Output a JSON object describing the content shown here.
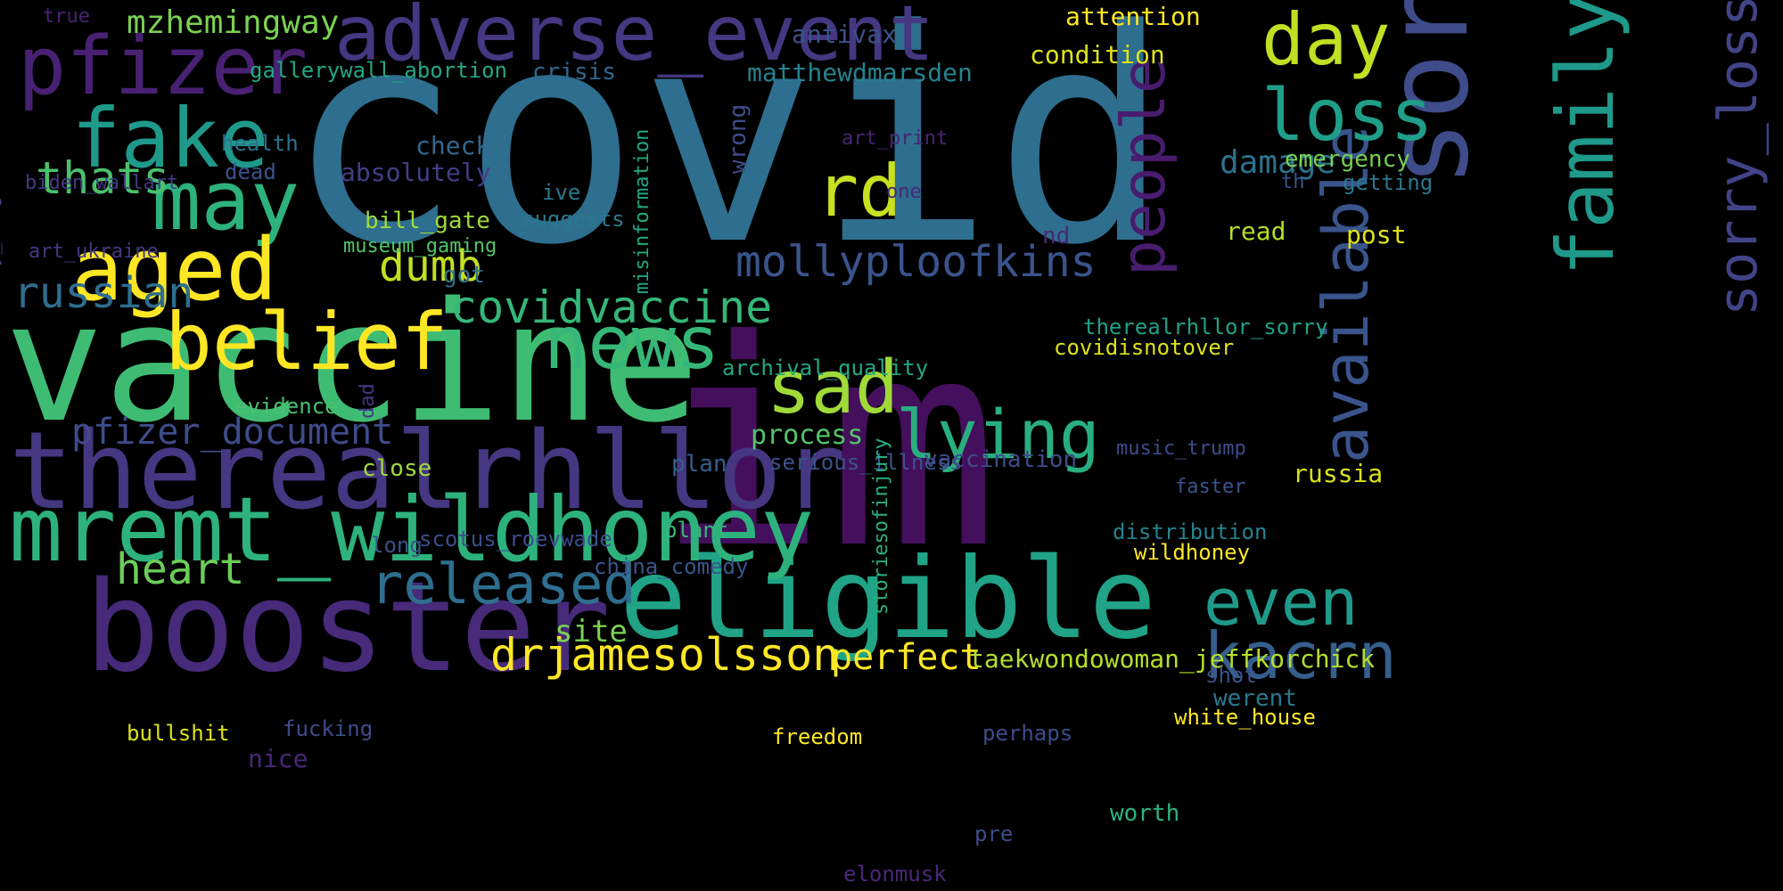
{
  "wordcloud": {
    "background": "#000000",
    "words": [
      {
        "text": "covid",
        "color": "#2e6e8e"
      },
      {
        "text": "im",
        "color": "#440f5c"
      },
      {
        "text": "vaccine",
        "color": "#3fbc73"
      },
      {
        "text": "booster",
        "color": "#472a7a"
      },
      {
        "text": "therealrhllor",
        "color": "#453781"
      },
      {
        "text": "sorry",
        "color": "#3e4c8a"
      },
      {
        "text": "eligible",
        "color": "#20a386"
      },
      {
        "text": "mremt_wildhoney",
        "color": "#2db27d"
      },
      {
        "text": "family",
        "color": "#1f9a8a"
      },
      {
        "text": "adverse_event",
        "color": "#453781"
      },
      {
        "text": "pfizer",
        "color": "#482173"
      },
      {
        "text": "fake",
        "color": "#1f9a8a"
      },
      {
        "text": "may",
        "color": "#2db27d"
      },
      {
        "text": "aged",
        "color": "#fde725"
      },
      {
        "text": "belief",
        "color": "#fde725"
      },
      {
        "text": "news",
        "color": "#35b779"
      },
      {
        "text": "people",
        "color": "#481c6e"
      },
      {
        "text": "sad",
        "color": "#a0da39"
      },
      {
        "text": "lying",
        "color": "#29af7f"
      },
      {
        "text": "available",
        "color": "#3a548c"
      },
      {
        "text": "sorry_loss",
        "color": "#414487"
      },
      {
        "text": "day",
        "color": "#c2df23"
      },
      {
        "text": "loss",
        "color": "#1f9e89"
      },
      {
        "text": "released",
        "color": "#2e6e8e"
      },
      {
        "text": "even",
        "color": "#1f9a8a"
      },
      {
        "text": "kacrn",
        "color": "#355f8d"
      },
      {
        "text": "drjamesolsson",
        "color": "#fde725"
      },
      {
        "text": "rd",
        "color": "#c8e020"
      },
      {
        "text": "mollyploofkins",
        "color": "#3a548c"
      },
      {
        "text": "covidvaccine",
        "color": "#35b779"
      },
      {
        "text": "thats",
        "color": "#4ac16d"
      },
      {
        "text": "russian",
        "color": "#2e6e8e"
      },
      {
        "text": "dumb",
        "color": "#c2df23"
      },
      {
        "text": "pfizer_document",
        "color": "#3e4c8a"
      },
      {
        "text": "heart",
        "color": "#6ccd5a"
      },
      {
        "text": "mzhemingway",
        "color": "#7ad151"
      },
      {
        "text": "perfect",
        "color": "#fde725"
      },
      {
        "text": "site",
        "color": "#7ad151"
      },
      {
        "text": "damage",
        "color": "#2c728e"
      },
      {
        "text": "process",
        "color": "#52c569"
      },
      {
        "text": "taekwondowoman_jeffkorchick",
        "color": "#b5de2b"
      },
      {
        "text": "attention",
        "color": "#fde725"
      },
      {
        "text": "condition",
        "color": "#dde318"
      },
      {
        "text": "antivax",
        "color": "#3b528b"
      },
      {
        "text": "matthewdmarsden",
        "color": "#26828e"
      },
      {
        "text": "crisis",
        "color": "#31688e"
      },
      {
        "text": "gallerywall_abortion",
        "color": "#22a884"
      },
      {
        "text": "check",
        "color": "#31688e"
      },
      {
        "text": "absolutely",
        "color": "#433e85"
      },
      {
        "text": "health",
        "color": "#2c728e"
      },
      {
        "text": "dead",
        "color": "#3b528b"
      },
      {
        "text": "biden_wallart",
        "color": "#443983"
      },
      {
        "text": "art_print",
        "color": "#482475"
      },
      {
        "text": "emergency",
        "color": "#75d054"
      },
      {
        "text": "getting",
        "color": "#2a788e"
      },
      {
        "text": "th",
        "color": "#3b528b"
      },
      {
        "text": "ive",
        "color": "#2a788e"
      },
      {
        "text": "suggests",
        "color": "#2a788e"
      },
      {
        "text": "misinformation",
        "color": "#22a884"
      },
      {
        "text": "wrong",
        "color": "#3e4c8a"
      },
      {
        "text": "one",
        "color": "#482878"
      },
      {
        "text": "bill_gate",
        "color": "#a0da39"
      },
      {
        "text": "museum_gaming",
        "color": "#52c569"
      },
      {
        "text": "got",
        "color": "#2c728e"
      },
      {
        "text": "art_ukraine",
        "color": "#443983"
      },
      {
        "text": "every_single",
        "color": "#414487"
      },
      {
        "text": "nd",
        "color": "#482878"
      },
      {
        "text": "read",
        "color": "#b5de2b"
      },
      {
        "text": "post",
        "color": "#dde318"
      },
      {
        "text": "therealrhllor_sorry",
        "color": "#1fa187"
      },
      {
        "text": "covidisnotover",
        "color": "#dde318"
      },
      {
        "text": "archival_quality",
        "color": "#22a884"
      },
      {
        "text": "evidence",
        "color": "#4ac16d"
      },
      {
        "text": "dad",
        "color": "#443983"
      },
      {
        "text": "close",
        "color": "#a0da39"
      },
      {
        "text": "plan",
        "color": "#355f8d"
      },
      {
        "text": "serious_illness",
        "color": "#3b528b"
      },
      {
        "text": "vaccination",
        "color": "#3e4c8a"
      },
      {
        "text": "music_trump",
        "color": "#3e4c8a"
      },
      {
        "text": "russia",
        "color": "#d8e219"
      },
      {
        "text": "faster",
        "color": "#3b528b"
      },
      {
        "text": "long",
        "color": "#3b528b"
      },
      {
        "text": "scotus_roevwade",
        "color": "#3e4c8a"
      },
      {
        "text": "plant",
        "color": "#35b779"
      },
      {
        "text": "storiesofinjury",
        "color": "#29af7f"
      },
      {
        "text": "distribution",
        "color": "#26828e"
      },
      {
        "text": "wildhoney",
        "color": "#fde725"
      },
      {
        "text": "china_comedy",
        "color": "#39568c"
      },
      {
        "text": "shot",
        "color": "#3b528b"
      },
      {
        "text": "werent",
        "color": "#2a788e"
      },
      {
        "text": "white_house",
        "color": "#fde725"
      },
      {
        "text": "bullshit",
        "color": "#dde318"
      },
      {
        "text": "fucking",
        "color": "#3e4c8a"
      },
      {
        "text": "freedom",
        "color": "#fde725"
      },
      {
        "text": "perhaps",
        "color": "#3e4c8a"
      },
      {
        "text": "nice",
        "color": "#482878"
      },
      {
        "text": "worth",
        "color": "#2db27d"
      },
      {
        "text": "pre",
        "color": "#3e4c8a"
      },
      {
        "text": "elonmusk",
        "color": "#482878"
      },
      {
        "text": "true",
        "color": "#482475"
      }
    ]
  }
}
